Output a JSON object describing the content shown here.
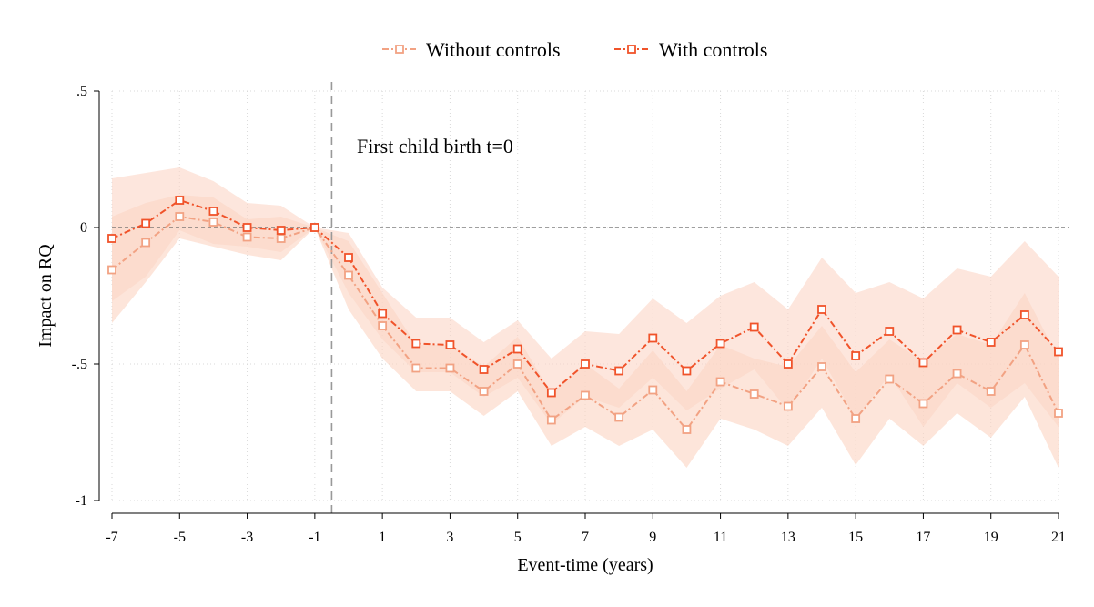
{
  "chart_data": {
    "type": "line",
    "title": "",
    "xlabel": "Event-time (years)",
    "ylabel": "Impact on RQ",
    "xlim": [
      -7,
      21
    ],
    "ylim": [
      -1,
      0.5
    ],
    "x_ticks": [
      -7,
      -5,
      -3,
      -1,
      1,
      3,
      5,
      7,
      9,
      11,
      13,
      15,
      17,
      19,
      21
    ],
    "x_tick_labels": [
      "-7",
      "-5",
      "-3",
      "-1",
      "1",
      "3",
      "5",
      "7",
      "9",
      "11",
      "13",
      "15",
      "17",
      "19",
      "21"
    ],
    "y_ticks": [
      0.5,
      0,
      -0.5,
      -1
    ],
    "y_tick_labels": [
      ".5",
      "0",
      "-.5",
      "-1"
    ],
    "grid": true,
    "legend_position": "top-center",
    "reference_lines": {
      "horizontal_at_y": 0,
      "vertical_at_x": -0.5
    },
    "annotation": {
      "text": "First child birth t=0",
      "x": 0.2,
      "y": 0.3
    },
    "x": [
      -7,
      -6,
      -5,
      -4,
      -3,
      -2,
      -1,
      0,
      1,
      2,
      3,
      4,
      5,
      6,
      7,
      8,
      9,
      10,
      11,
      12,
      13,
      14,
      15,
      16,
      17,
      18,
      19,
      20,
      21
    ],
    "series": [
      {
        "name": "Without controls",
        "color": "#f2a283",
        "band_color": "#fbd3c2",
        "values": [
          -0.155,
          -0.055,
          0.04,
          0.02,
          -0.035,
          -0.04,
          0,
          -0.175,
          -0.36,
          -0.515,
          -0.515,
          -0.6,
          -0.5,
          -0.705,
          -0.615,
          -0.695,
          -0.595,
          -0.74,
          -0.565,
          -0.61,
          -0.655,
          -0.51,
          -0.7,
          -0.555,
          -0.645,
          -0.535,
          -0.6,
          -0.43,
          -0.68
        ],
        "ci_low": [
          -0.35,
          -0.2,
          -0.04,
          -0.07,
          -0.1,
          -0.12,
          0,
          -0.3,
          -0.48,
          -0.6,
          -0.6,
          -0.69,
          -0.6,
          -0.8,
          -0.73,
          -0.8,
          -0.74,
          -0.88,
          -0.7,
          -0.74,
          -0.8,
          -0.66,
          -0.87,
          -0.7,
          -0.8,
          -0.68,
          -0.77,
          -0.62,
          -0.88
        ],
        "ci_high": [
          0.04,
          0.09,
          0.12,
          0.11,
          0.03,
          0.04,
          0,
          -0.05,
          -0.24,
          -0.43,
          -0.43,
          -0.51,
          -0.4,
          -0.61,
          -0.5,
          -0.59,
          -0.45,
          -0.6,
          -0.43,
          -0.48,
          -0.51,
          -0.36,
          -0.53,
          -0.41,
          -0.49,
          -0.39,
          -0.43,
          -0.24,
          -0.48
        ]
      },
      {
        "name": "With controls",
        "color": "#f0532a",
        "band_color": "#fcd6c6",
        "values": [
          -0.04,
          0.015,
          0.1,
          0.06,
          0.0,
          -0.01,
          0,
          -0.11,
          -0.315,
          -0.425,
          -0.43,
          -0.52,
          -0.445,
          -0.605,
          -0.5,
          -0.525,
          -0.405,
          -0.525,
          -0.425,
          -0.365,
          -0.5,
          -0.3,
          -0.47,
          -0.38,
          -0.495,
          -0.375,
          -0.42,
          -0.32,
          -0.455
        ],
        "ci_low": [
          -0.27,
          -0.18,
          -0.01,
          -0.06,
          -0.07,
          -0.09,
          0,
          -0.24,
          -0.41,
          -0.53,
          -0.53,
          -0.62,
          -0.55,
          -0.72,
          -0.62,
          -0.66,
          -0.55,
          -0.67,
          -0.59,
          -0.52,
          -0.67,
          -0.48,
          -0.7,
          -0.54,
          -0.73,
          -0.57,
          -0.66,
          -0.57,
          -0.73
        ],
        "ci_high": [
          0.18,
          0.2,
          0.22,
          0.17,
          0.09,
          0.08,
          0,
          -0.02,
          -0.22,
          -0.33,
          -0.33,
          -0.42,
          -0.34,
          -0.48,
          -0.38,
          -0.39,
          -0.26,
          -0.35,
          -0.25,
          -0.2,
          -0.3,
          -0.11,
          -0.24,
          -0.2,
          -0.26,
          -0.15,
          -0.18,
          -0.05,
          -0.18
        ]
      }
    ]
  }
}
